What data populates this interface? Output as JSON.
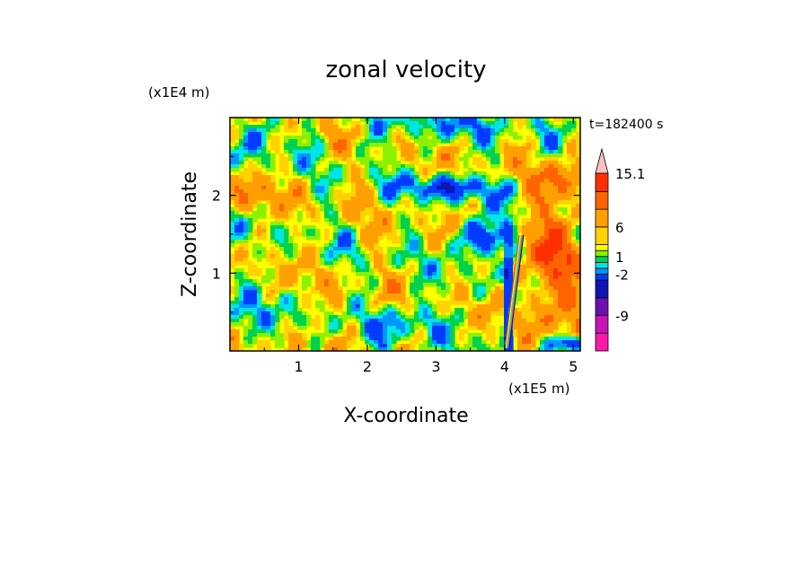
{
  "chart_data": {
    "type": "heatmap",
    "title": "zonal velocity",
    "xlabel": "X-coordinate",
    "ylabel": "Z-coordinate",
    "x_scale_label": "(x1E5 m)",
    "y_scale_label": "(x1E4 m)",
    "time_label": "t=182400 s",
    "xlim": [
      0,
      5.1
    ],
    "ylim": [
      0,
      3.0
    ],
    "x_ticks": [
      "1",
      "2",
      "3",
      "4",
      "5"
    ],
    "y_ticks": [
      "1",
      "2"
    ],
    "colorbar": {
      "levels": [
        -15,
        -12,
        -9,
        -6,
        -3,
        -2,
        -1,
        0,
        1,
        2,
        3,
        6,
        9,
        12,
        15.1
      ],
      "labels": [
        "15.1",
        "6",
        "1",
        "-2",
        "-9"
      ],
      "colors": [
        "#ff1aa8",
        "#c814b4",
        "#6e0fb0",
        "#0f14b4",
        "#003cff",
        "#0096ff",
        "#00e6e6",
        "#00d250",
        "#8cf000",
        "#ffff00",
        "#ffd200",
        "#ffa000",
        "#ff6400",
        "#ff3000",
        "#ff8080",
        "#ffc0c0"
      ],
      "extend": "max"
    }
  }
}
